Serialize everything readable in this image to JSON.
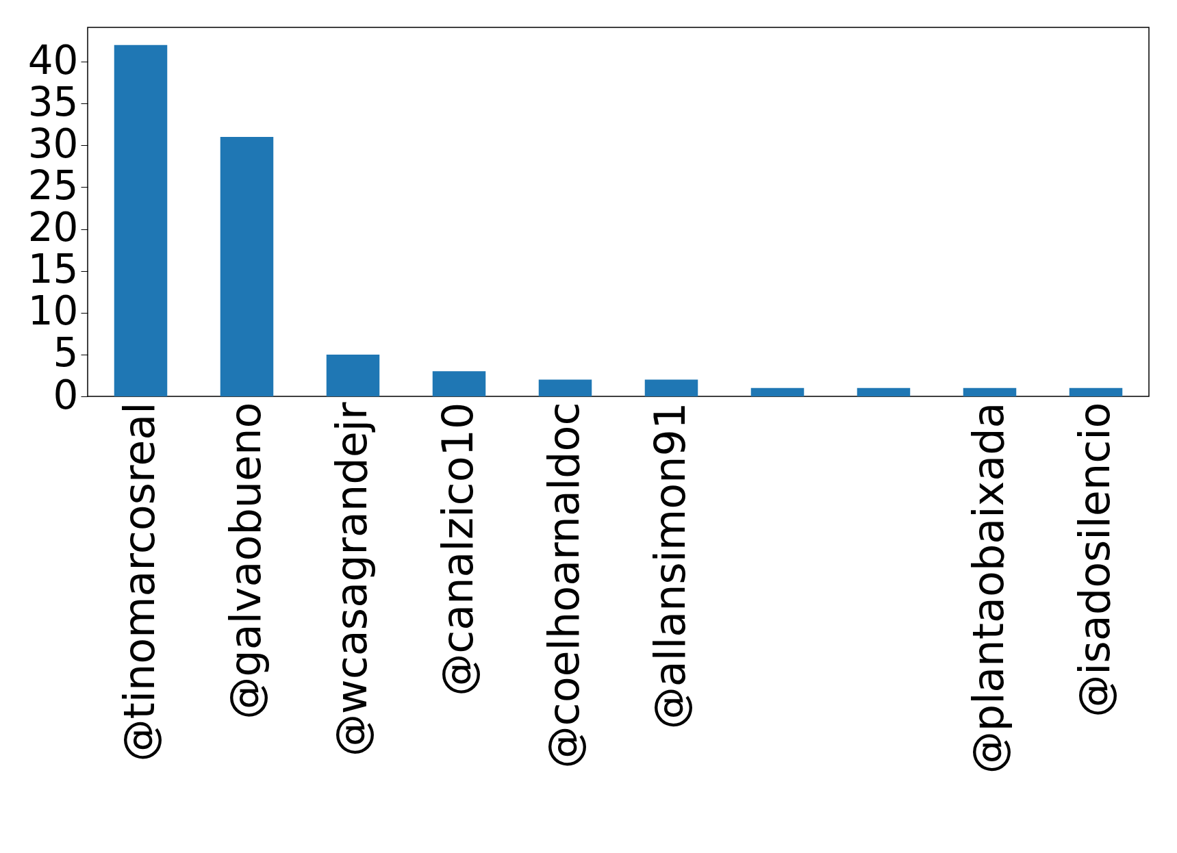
{
  "chart_data": {
    "type": "bar",
    "categories": [
      "@tinomarcosreal",
      "@galvaobueno",
      "@wcasagrandejr",
      "@canalzico10",
      "@coelhoarnaldoc",
      "@allansimon91",
      null,
      null,
      "@plantaobaixada",
      "@isadosilencio"
    ],
    "values": [
      42,
      31,
      5,
      3,
      2,
      2,
      1,
      1,
      1,
      1
    ],
    "color": "#1f77b4",
    "ylim": [
      0,
      44.1
    ],
    "yticks": [
      0,
      5,
      10,
      15,
      20,
      25,
      30,
      35,
      40
    ],
    "grid": false
  }
}
